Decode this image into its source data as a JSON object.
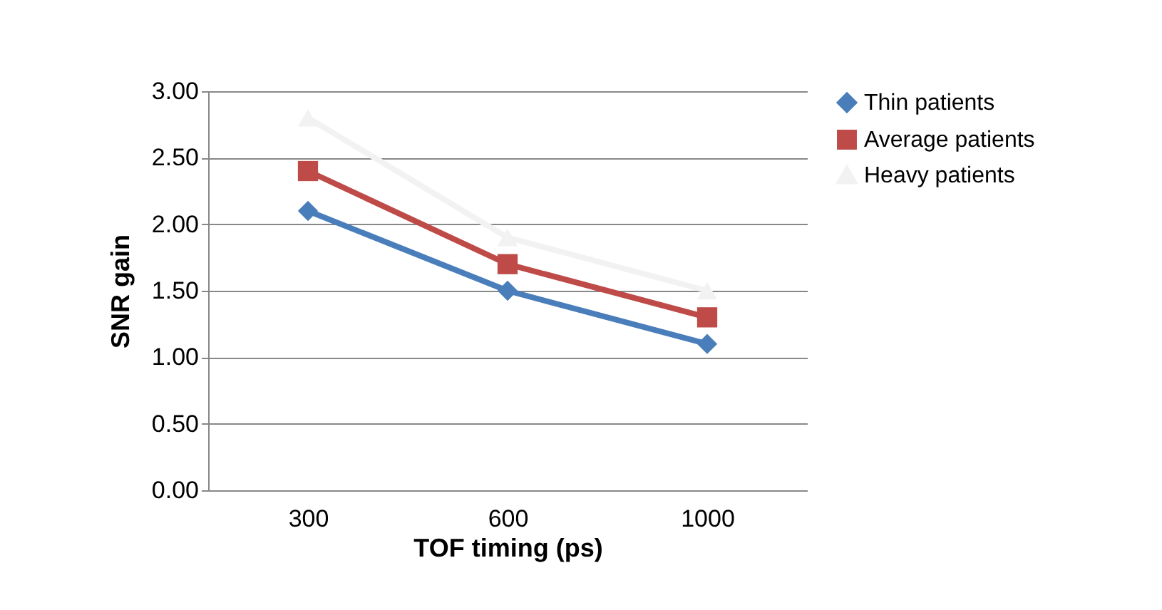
{
  "chart_data": {
    "type": "line",
    "xlabel": "TOF timing (ps)",
    "ylabel": "SNR gain",
    "categories": [
      "300",
      "600",
      "1000"
    ],
    "series": [
      {
        "name": "Thin patients",
        "color": "#4a7ebb",
        "marker": "diamond",
        "values": [
          2.1,
          1.5,
          1.1
        ]
      },
      {
        "name": "Average patients",
        "color": "#be4b48",
        "marker": "square",
        "values": [
          2.4,
          1.7,
          1.3
        ]
      },
      {
        "name": "Heavy patients",
        "color": "#f2f2f2",
        "marker": "triangle",
        "values": [
          2.8,
          1.9,
          1.5
        ]
      }
    ],
    "ylim": [
      0,
      3
    ],
    "yticks": [
      {
        "value": 0,
        "label": "0.00"
      },
      {
        "value": 0.5,
        "label": "0.50"
      },
      {
        "value": 1,
        "label": "1.00"
      },
      {
        "value": 1.5,
        "label": "1.50"
      },
      {
        "value": 2,
        "label": "2.00"
      },
      {
        "value": 2.5,
        "label": "2.50"
      },
      {
        "value": 3,
        "label": "3.00"
      }
    ],
    "grid": "y",
    "legend": "right",
    "line_style": "solid"
  }
}
